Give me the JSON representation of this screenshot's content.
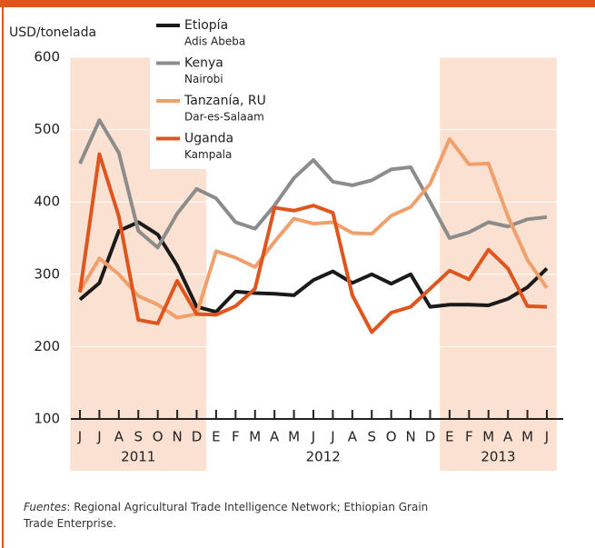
{
  "chart_data": {
    "type": "line",
    "y_axis_label": "USD/tonelada",
    "categories": [
      "J",
      "J",
      "A",
      "S",
      "O",
      "N",
      "D",
      "E",
      "F",
      "M",
      "A",
      "M",
      "J",
      "J",
      "A",
      "S",
      "O",
      "N",
      "D",
      "E",
      "F",
      "M",
      "A",
      "M",
      "J"
    ],
    "periods": [
      {
        "label": "2011",
        "count": 7,
        "shaded": true
      },
      {
        "label": "2012",
        "count": 12,
        "shaded": false
      },
      {
        "label": "2013",
        "count": 6,
        "shaded": true
      }
    ],
    "ylim": [
      100,
      600
    ],
    "yticks": [
      100,
      200,
      300,
      400,
      500,
      600
    ],
    "series": [
      {
        "name": "Etiopía",
        "market": "Adis Abeba",
        "color": "#1a1a1a",
        "values": [
          265,
          288,
          360,
          372,
          355,
          312,
          255,
          248,
          276,
          274,
          273,
          271,
          292,
          304,
          288,
          300,
          287,
          300,
          255,
          258,
          258,
          257,
          266,
          282,
          308
        ]
      },
      {
        "name": "Kenya",
        "market": "Nairobi",
        "color": "#8c8c8c",
        "values": [
          453,
          513,
          468,
          360,
          337,
          384,
          418,
          405,
          372,
          363,
          395,
          433,
          458,
          428,
          423,
          430,
          445,
          448,
          400,
          350,
          358,
          372,
          366,
          376,
          379
        ]
      },
      {
        "name": "Tanzanía, RU",
        "market": "Dar-es-Salaam",
        "color": "#f0a06c",
        "values": [
          277,
          322,
          300,
          270,
          258,
          240,
          245,
          332,
          323,
          310,
          345,
          377,
          370,
          372,
          357,
          356,
          381,
          393,
          425,
          487,
          452,
          453,
          380,
          320,
          281
        ]
      },
      {
        "name": "Uganda",
        "market": "Kampala",
        "color": "#e0551e",
        "values": [
          275,
          466,
          380,
          237,
          232,
          291,
          245,
          244,
          256,
          280,
          392,
          388,
          395,
          385,
          271,
          220,
          247,
          255,
          280,
          305,
          293,
          334,
          308,
          256,
          255
        ]
      }
    ],
    "source_label": "Fuentes",
    "source_text": ": Regional Agricultural Trade Intelligence Network; Ethiopian Grain Trade Enterprise."
  }
}
